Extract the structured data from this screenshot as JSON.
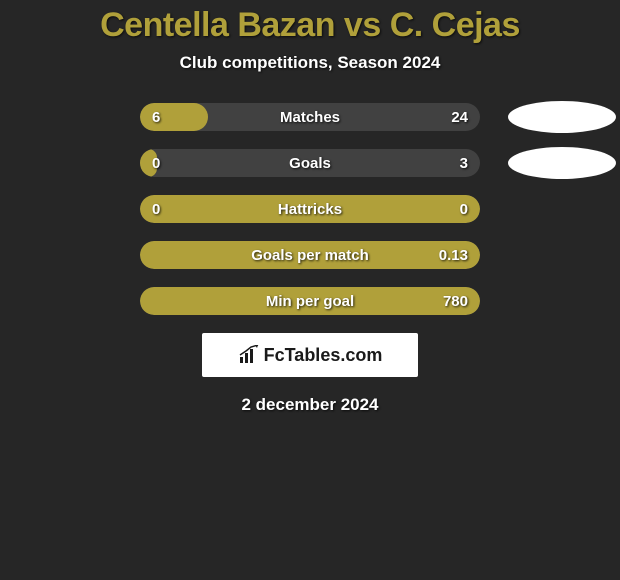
{
  "title": "Centella Bazan vs C. Cejas",
  "subtitle": "Club competitions, Season 2024",
  "date": "2 december 2024",
  "logo_text": "FcTables.com",
  "colors": {
    "background": "#262626",
    "accent": "#b0a03a",
    "bar_bg": "#414141",
    "text": "#ffffff",
    "ellipse": "#ffffff"
  },
  "rows": [
    {
      "label": "Matches",
      "left": "6",
      "right": "24",
      "fill_pct": 20,
      "show_ellipses": true
    },
    {
      "label": "Goals",
      "left": "0",
      "right": "3",
      "fill_pct": 5,
      "show_ellipses": true
    },
    {
      "label": "Hattricks",
      "left": "0",
      "right": "0",
      "fill_pct": 100,
      "show_ellipses": false
    },
    {
      "label": "Goals per match",
      "left": "",
      "right": "0.13",
      "fill_pct": 100,
      "show_ellipses": false
    },
    {
      "label": "Min per goal",
      "left": "",
      "right": "780",
      "fill_pct": 100,
      "show_ellipses": false
    }
  ]
}
